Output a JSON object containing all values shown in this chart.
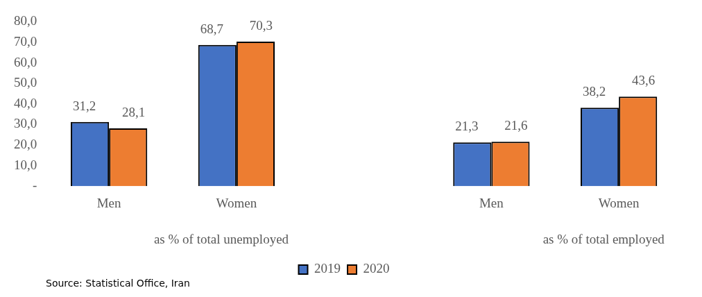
{
  "chart_data": {
    "type": "bar",
    "categories": [
      "Men",
      "Women",
      null,
      "Men",
      "Women"
    ],
    "series": [
      {
        "name": "2019",
        "color": "#4472c4",
        "values": [
          31.2,
          68.7,
          null,
          21.3,
          38.2
        ],
        "value_labels": [
          "31,2",
          "68,7",
          null,
          "21,3",
          "38,2"
        ]
      },
      {
        "name": "2020",
        "color": "#ed7d31",
        "values": [
          28.1,
          70.3,
          null,
          21.6,
          43.6
        ],
        "value_labels": [
          "28,1",
          "70,3",
          null,
          "21,6",
          "43,6"
        ]
      }
    ],
    "ylim": [
      0,
      80
    ],
    "yticks": [
      {
        "value": 0,
        "label": "-"
      },
      {
        "value": 10,
        "label": "10,0"
      },
      {
        "value": 20,
        "label": "20,0"
      },
      {
        "value": 30,
        "label": "30,0"
      },
      {
        "value": 40,
        "label": "40,0"
      },
      {
        "value": 50,
        "label": "50,0"
      },
      {
        "value": 60,
        "label": "60,0"
      },
      {
        "value": 70,
        "label": "70,0"
      },
      {
        "value": 80,
        "label": "80,0"
      }
    ],
    "grid": false,
    "legend": "bottom",
    "annotations": [
      "as % of total unemployed",
      "as % of total employed",
      "Source: Statistical Office, Iran"
    ]
  }
}
